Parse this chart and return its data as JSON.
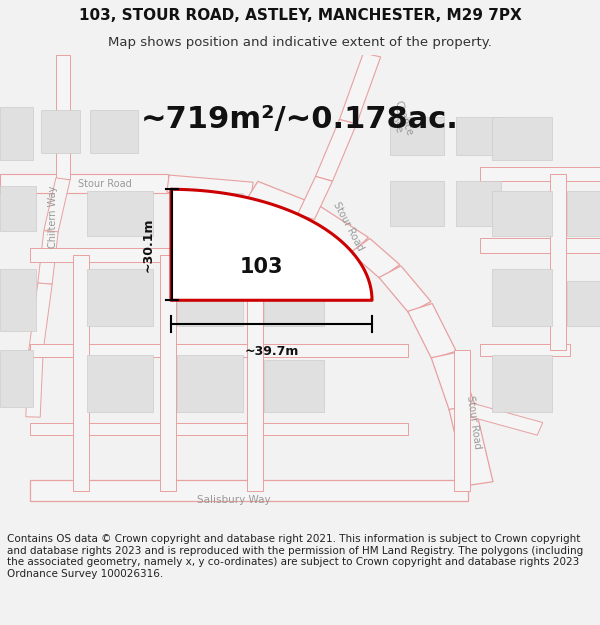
{
  "title": "103, STOUR ROAD, ASTLEY, MANCHESTER, M29 7PX",
  "subtitle": "Map shows position and indicative extent of the property.",
  "area_text": "~719m²/~0.178ac.",
  "label_103": "103",
  "dim_height": "~30.1m",
  "dim_width": "~39.7m",
  "footer": "Contains OS data © Crown copyright and database right 2021. This information is subject to Crown copyright and database rights 2023 and is reproduced with the permission of HM Land Registry. The polygons (including the associated geometry, namely x, y co-ordinates) are subject to Crown copyright and database rights 2023 Ordnance Survey 100026316.",
  "bg_color": "#f2f2f2",
  "map_bg": "#f8f8f8",
  "parcel_color": "#cc0000",
  "building_fill": "#e0e0e0",
  "building_edge": "#cccccc",
  "road_fill": "#f0f0f0",
  "road_stroke": "#e8a0a0",
  "road_label_color": "#999999",
  "title_fontsize": 11,
  "subtitle_fontsize": 9.5,
  "area_fontsize": 22,
  "label_fontsize": 15,
  "dim_fontsize": 9,
  "road_label_fontsize": 7,
  "footer_fontsize": 7.5
}
